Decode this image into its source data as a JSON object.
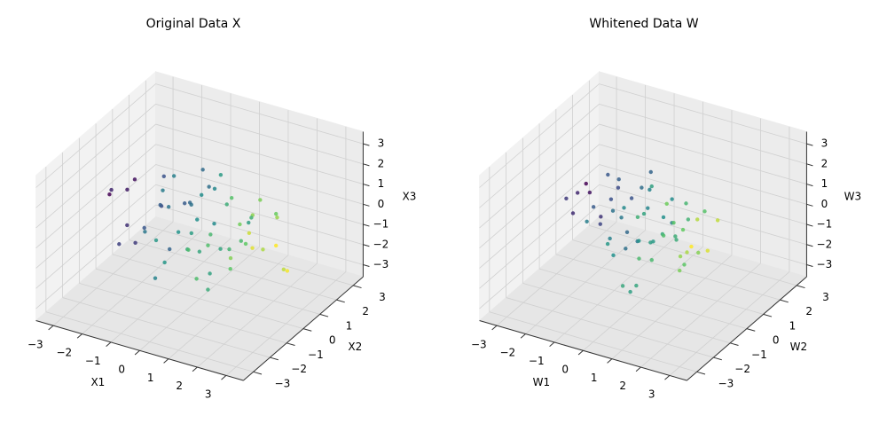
{
  "chart_data": [
    {
      "type": "scatter3d",
      "title": "Original Data X",
      "xlabel": "X1",
      "ylabel": "X2",
      "zlabel": "X3",
      "colormap": "viridis",
      "grid": true,
      "xlim": [
        -3.6,
        3.6
      ],
      "ylim": [
        -3.6,
        3.6
      ],
      "zlim": [
        -3.6,
        3.6
      ],
      "xticks": [
        {
          "value": -3,
          "label": "−3"
        },
        {
          "value": -2,
          "label": "−2"
        },
        {
          "value": -1,
          "label": "−1"
        },
        0,
        1,
        2,
        3
      ],
      "yticks": [
        {
          "value": -3,
          "label": "−3"
        },
        {
          "value": -2,
          "label": "−2"
        },
        {
          "value": -1,
          "label": "−1"
        },
        0,
        1,
        2,
        3
      ],
      "zticks": [
        {
          "value": -3,
          "label": "−3"
        },
        {
          "value": -2,
          "label": "−2"
        },
        {
          "value": -1,
          "label": "−1"
        },
        0,
        1,
        2,
        3
      ],
      "x": [
        -2.8,
        -2.1,
        -1.7,
        -1.2,
        -0.9,
        -0.5,
        -0.2,
        0.1,
        0.4,
        0.8,
        1.1,
        1.5,
        1.9,
        2.4,
        3.0,
        -3.3,
        -1.5,
        -0.7,
        0.0,
        0.6,
        1.3,
        2.0,
        2.7,
        -2.4,
        -1.0,
        0.3,
        0.9,
        1.7,
        -0.3,
        0.5,
        -1.9,
        -0.6,
        0.2,
        1.0,
        2.2,
        -2.6,
        -1.3,
        -0.1,
        0.7,
        1.6,
        2.9,
        -3.0,
        -0.8,
        0.35,
        1.2,
        -1.6,
        -0.4,
        0.05,
        0.95,
        1.8,
        -2.2,
        -1.1,
        0.15,
        1.4,
        2.5,
        -0.95,
        0.55,
        -0.25,
        1.05,
        -1.45
      ],
      "y": [
        0.5,
        -1.2,
        0.8,
        1.5,
        -0.3,
        -1.8,
        0.2,
        1.1,
        -0.7,
        0.4,
        -1.4,
        2.0,
        -0.1,
        0.9,
        -0.6,
        0.3,
        1.7,
        -1.0,
        -2.1,
        0.6,
        -0.4,
        1.2,
        -1.5,
        -0.2,
        2.3,
        0.1,
        -0.9,
        0.7,
        1.4,
        -1.6,
        1.0,
        -0.5,
        2.6,
        -2.4,
        0.0,
        -0.8,
        0.45,
        -1.1,
        1.9,
        -0.35,
        0.25,
        1.3,
        -1.9,
        0.65,
        -0.15,
        -0.55,
        1.6,
        -2.7,
        0.85,
        -1.25,
        -0.05,
        2.1,
        -0.75,
        0.35,
        -1.35,
        1.15,
        -0.45,
        0.55,
        -2.0,
        0.15
      ],
      "z": [
        0.3,
        -0.9,
        1.2,
        -0.4,
        0.8,
        -1.5,
        0.1,
        1.8,
        -0.6,
        -1.1,
        0.5,
        -0.2,
        1.4,
        -1.8,
        0.7,
        0.0,
        -0.7,
        2.2,
        -0.3,
        0.9,
        -1.3,
        0.4,
        1.1,
        -0.8,
        -0.1,
        -2.3,
        0.6,
        1.5,
        -1.0,
        0.2,
        -0.5,
        2.6,
        -1.6,
        0.95,
        -0.25,
        1.3,
        -2.0,
        0.45,
        -0.65,
        1.0,
        -1.2,
        0.15,
        0.75,
        -1.45,
        2.0,
        -0.35,
        0.55,
        1.25,
        -0.95,
        0.05,
        -1.7,
        0.85,
        0.25,
        -0.55,
        1.65,
        -0.15,
        -2.6,
        1.05,
        -0.75,
        0.35
      ]
    },
    {
      "type": "scatter3d",
      "title": "Whitened Data W",
      "xlabel": "W1",
      "ylabel": "W2",
      "zlabel": "W3",
      "colormap": "viridis",
      "grid": true,
      "xlim": [
        -3.6,
        3.6
      ],
      "ylim": [
        -3.6,
        3.6
      ],
      "zlim": [
        -3.6,
        3.6
      ],
      "xticks": [
        {
          "value": -3,
          "label": "−3"
        },
        {
          "value": -2,
          "label": "−2"
        },
        {
          "value": -1,
          "label": "−1"
        },
        0,
        1,
        2,
        3
      ],
      "yticks": [
        {
          "value": -3,
          "label": "−3"
        },
        {
          "value": -2,
          "label": "−2"
        },
        {
          "value": -1,
          "label": "−1"
        },
        0,
        1,
        2,
        3
      ],
      "zticks": [
        {
          "value": -3,
          "label": "−3"
        },
        {
          "value": -2,
          "label": "−2"
        },
        {
          "value": -1,
          "label": "−1"
        },
        0,
        1,
        2,
        3
      ],
      "x": [
        0.5,
        -1.2,
        0.8,
        1.5,
        -0.3,
        -1.8,
        0.2,
        1.1,
        -0.7,
        0.4,
        -1.4,
        2.0,
        -0.1,
        0.9,
        -0.6,
        0.3,
        1.7,
        -1.0,
        -2.1,
        0.6,
        -0.4,
        1.2,
        -1.5,
        -0.2,
        2.3,
        0.1,
        -0.9,
        0.7,
        1.4,
        -1.6,
        1.0,
        -0.5,
        2.6,
        -2.4,
        0.0,
        -0.8,
        0.45,
        -1.1,
        1.9,
        -0.35,
        0.25,
        1.3,
        -1.9,
        0.65,
        -0.15,
        -0.55,
        1.6,
        -2.7,
        0.85,
        -1.25,
        -0.05,
        2.1,
        -0.75,
        0.35,
        -1.35,
        1.15,
        -0.45,
        0.55,
        -2.0,
        0.15
      ],
      "y": [
        0.3,
        -0.9,
        1.2,
        -0.4,
        0.8,
        -1.5,
        0.1,
        1.8,
        -0.6,
        -1.1,
        0.5,
        -0.2,
        1.4,
        -1.8,
        0.7,
        0.0,
        -0.7,
        2.2,
        -0.3,
        0.9,
        -1.3,
        0.4,
        1.1,
        -0.8,
        -0.1,
        -2.3,
        0.6,
        1.5,
        -1.0,
        0.2,
        -0.5,
        2.6,
        -1.6,
        0.95,
        -0.25,
        1.3,
        -2.0,
        0.45,
        -0.65,
        1.0,
        -1.2,
        0.15,
        0.75,
        -1.45,
        2.0,
        -0.35,
        0.55,
        1.25,
        -0.95,
        0.05,
        -1.7,
        0.85,
        0.25,
        -0.55,
        1.65,
        -0.15,
        -2.6,
        1.05,
        -0.75,
        0.35
      ],
      "z": [
        -0.4,
        1.1,
        0.6,
        -1.3,
        0.2,
        1.7,
        -0.8,
        -0.1,
        0.9,
        -2.0,
        0.4,
        1.3,
        -0.6,
        0.05,
        -1.5,
        2.1,
        -0.3,
        0.7,
        1.0,
        -0.9,
        0.15,
        -1.7,
        0.5,
        1.4,
        -0.2,
        0.8,
        -1.1,
        -0.45,
        2.4,
        -0.7,
        0.3,
        -1.9,
        1.2,
        0.0,
        -0.55,
        0.65,
        -1.35,
        1.55,
        -0.05,
        0.95,
        -2.3,
        0.25,
        -0.85,
        1.75,
        -0.15,
        0.45,
        -1.05,
        0.1,
        -0.65,
        2.0,
        -0.25,
        0.55,
        -1.6,
        1.15,
        -0.35,
        0.75,
        1.9,
        -1.2,
        0.35,
        -0.95
      ]
    }
  ]
}
